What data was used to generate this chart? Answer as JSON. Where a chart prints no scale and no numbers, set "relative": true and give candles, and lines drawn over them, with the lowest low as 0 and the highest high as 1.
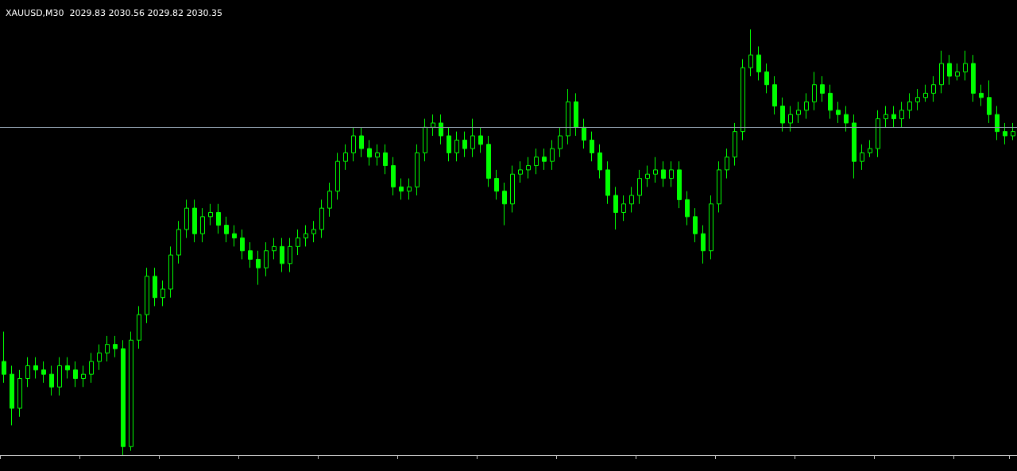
{
  "chart_data": {
    "type": "candlestick",
    "title": "XAUUSD,M30  2029.83 2030.56 2029.82 2030.35",
    "relative": true,
    "grid": false,
    "categories": [
      null,
      null,
      null,
      null,
      null,
      null,
      null,
      null,
      null,
      null,
      null,
      null,
      null,
      null,
      null,
      null,
      null,
      null,
      null,
      null,
      null,
      null,
      null,
      null,
      null,
      null,
      null,
      null,
      null,
      null,
      null,
      null,
      null,
      null,
      null,
      null,
      null,
      null,
      null,
      null,
      null,
      null,
      null,
      null,
      null,
      null,
      null,
      null,
      null,
      null,
      null,
      null,
      null,
      null,
      null,
      null,
      null,
      null,
      null,
      null,
      null,
      null,
      null,
      null,
      null,
      null,
      null,
      null,
      null,
      null,
      null,
      null,
      null,
      null,
      null,
      null,
      null,
      null,
      null,
      null,
      null,
      null,
      null,
      null,
      null,
      null,
      null,
      null,
      null,
      null,
      null,
      null,
      null,
      null,
      null,
      null,
      null,
      null,
      null,
      null,
      null,
      null,
      null,
      null,
      null,
      null,
      null,
      null,
      null,
      null,
      null,
      null,
      null,
      null,
      null,
      null,
      null,
      null,
      null,
      null,
      null,
      null,
      null,
      null,
      null,
      null,
      null,
      null
    ],
    "ref_lines": [
      {
        "axis": "y",
        "value": 0.77,
        "color": "#8a98a6"
      }
    ],
    "series": [
      {
        "color": "#00ff00",
        "ohlc": [
          [
            0.22,
            0.29,
            0.17,
            0.19
          ],
          [
            0.19,
            0.21,
            0.07,
            0.11
          ],
          [
            0.11,
            0.2,
            0.09,
            0.18
          ],
          [
            0.18,
            0.23,
            0.16,
            0.21
          ],
          [
            0.21,
            0.23,
            0.18,
            0.2
          ],
          [
            0.2,
            0.22,
            0.17,
            0.19
          ],
          [
            0.19,
            0.21,
            0.14,
            0.16
          ],
          [
            0.16,
            0.23,
            0.14,
            0.21
          ],
          [
            0.21,
            0.23,
            0.18,
            0.2
          ],
          [
            0.2,
            0.22,
            0.16,
            0.18
          ],
          [
            0.18,
            0.21,
            0.16,
            0.19
          ],
          [
            0.19,
            0.24,
            0.17,
            0.22
          ],
          [
            0.22,
            0.26,
            0.2,
            0.24
          ],
          [
            0.24,
            0.28,
            0.22,
            0.26
          ],
          [
            0.26,
            0.28,
            0.23,
            0.25
          ],
          [
            0.25,
            0.27,
            0.0,
            0.02
          ],
          [
            0.02,
            0.29,
            0.01,
            0.27
          ],
          [
            0.27,
            0.35,
            0.25,
            0.33
          ],
          [
            0.33,
            0.44,
            0.31,
            0.42
          ],
          [
            0.42,
            0.44,
            0.35,
            0.37
          ],
          [
            0.37,
            0.41,
            0.35,
            0.39
          ],
          [
            0.39,
            0.49,
            0.37,
            0.47
          ],
          [
            0.47,
            0.55,
            0.45,
            0.53
          ],
          [
            0.53,
            0.6,
            0.51,
            0.58
          ],
          [
            0.58,
            0.6,
            0.5,
            0.52
          ],
          [
            0.52,
            0.58,
            0.5,
            0.56
          ],
          [
            0.56,
            0.59,
            0.54,
            0.57
          ],
          [
            0.57,
            0.59,
            0.52,
            0.54
          ],
          [
            0.54,
            0.56,
            0.5,
            0.52
          ],
          [
            0.52,
            0.54,
            0.49,
            0.51
          ],
          [
            0.51,
            0.53,
            0.46,
            0.48
          ],
          [
            0.48,
            0.5,
            0.44,
            0.46
          ],
          [
            0.46,
            0.48,
            0.4,
            0.44
          ],
          [
            0.44,
            0.5,
            0.42,
            0.48
          ],
          [
            0.48,
            0.51,
            0.46,
            0.49
          ],
          [
            0.49,
            0.51,
            0.43,
            0.45
          ],
          [
            0.45,
            0.51,
            0.43,
            0.49
          ],
          [
            0.49,
            0.53,
            0.47,
            0.51
          ],
          [
            0.51,
            0.54,
            0.49,
            0.52
          ],
          [
            0.52,
            0.55,
            0.5,
            0.53
          ],
          [
            0.53,
            0.6,
            0.51,
            0.58
          ],
          [
            0.58,
            0.64,
            0.56,
            0.62
          ],
          [
            0.62,
            0.71,
            0.6,
            0.69
          ],
          [
            0.69,
            0.73,
            0.67,
            0.71
          ],
          [
            0.71,
            0.77,
            0.69,
            0.75
          ],
          [
            0.75,
            0.77,
            0.7,
            0.72
          ],
          [
            0.72,
            0.74,
            0.68,
            0.7
          ],
          [
            0.7,
            0.73,
            0.68,
            0.71
          ],
          [
            0.71,
            0.73,
            0.66,
            0.68
          ],
          [
            0.68,
            0.7,
            0.61,
            0.63
          ],
          [
            0.63,
            0.65,
            0.6,
            0.62
          ],
          [
            0.62,
            0.65,
            0.6,
            0.63
          ],
          [
            0.63,
            0.73,
            0.61,
            0.71
          ],
          [
            0.71,
            0.79,
            0.69,
            0.77
          ],
          [
            0.77,
            0.8,
            0.75,
            0.78
          ],
          [
            0.78,
            0.8,
            0.73,
            0.75
          ],
          [
            0.75,
            0.77,
            0.69,
            0.71
          ],
          [
            0.71,
            0.76,
            0.69,
            0.74
          ],
          [
            0.74,
            0.76,
            0.7,
            0.72
          ],
          [
            0.72,
            0.79,
            0.7,
            0.75
          ],
          [
            0.75,
            0.77,
            0.71,
            0.73
          ],
          [
            0.73,
            0.75,
            0.63,
            0.65
          ],
          [
            0.65,
            0.67,
            0.6,
            0.62
          ],
          [
            0.62,
            0.64,
            0.54,
            0.59
          ],
          [
            0.59,
            0.68,
            0.57,
            0.66
          ],
          [
            0.66,
            0.69,
            0.64,
            0.67
          ],
          [
            0.67,
            0.7,
            0.65,
            0.68
          ],
          [
            0.68,
            0.72,
            0.66,
            0.7
          ],
          [
            0.7,
            0.72,
            0.67,
            0.69
          ],
          [
            0.69,
            0.74,
            0.67,
            0.72
          ],
          [
            0.72,
            0.77,
            0.7,
            0.75
          ],
          [
            0.75,
            0.86,
            0.73,
            0.83
          ],
          [
            0.83,
            0.85,
            0.75,
            0.77
          ],
          [
            0.77,
            0.79,
            0.72,
            0.74
          ],
          [
            0.74,
            0.76,
            0.69,
            0.71
          ],
          [
            0.71,
            0.73,
            0.65,
            0.67
          ],
          [
            0.67,
            0.69,
            0.59,
            0.61
          ],
          [
            0.61,
            0.63,
            0.53,
            0.57
          ],
          [
            0.57,
            0.61,
            0.55,
            0.59
          ],
          [
            0.59,
            0.63,
            0.57,
            0.61
          ],
          [
            0.61,
            0.67,
            0.59,
            0.65
          ],
          [
            0.65,
            0.68,
            0.63,
            0.66
          ],
          [
            0.66,
            0.7,
            0.64,
            0.67
          ],
          [
            0.67,
            0.69,
            0.63,
            0.65
          ],
          [
            0.65,
            0.69,
            0.63,
            0.67
          ],
          [
            0.67,
            0.69,
            0.58,
            0.6
          ],
          [
            0.6,
            0.62,
            0.54,
            0.56
          ],
          [
            0.56,
            0.58,
            0.5,
            0.52
          ],
          [
            0.52,
            0.54,
            0.45,
            0.48
          ],
          [
            0.48,
            0.61,
            0.46,
            0.59
          ],
          [
            0.59,
            0.69,
            0.57,
            0.67
          ],
          [
            0.67,
            0.72,
            0.65,
            0.7
          ],
          [
            0.7,
            0.78,
            0.68,
            0.76
          ],
          [
            0.76,
            0.93,
            0.74,
            0.91
          ],
          [
            0.91,
            1.0,
            0.89,
            0.94
          ],
          [
            0.94,
            0.96,
            0.88,
            0.9
          ],
          [
            0.9,
            0.92,
            0.85,
            0.87
          ],
          [
            0.87,
            0.89,
            0.8,
            0.82
          ],
          [
            0.82,
            0.84,
            0.76,
            0.78
          ],
          [
            0.78,
            0.82,
            0.76,
            0.8
          ],
          [
            0.8,
            0.83,
            0.78,
            0.81
          ],
          [
            0.81,
            0.85,
            0.79,
            0.83
          ],
          [
            0.83,
            0.9,
            0.81,
            0.87
          ],
          [
            0.87,
            0.89,
            0.83,
            0.85
          ],
          [
            0.85,
            0.87,
            0.79,
            0.81
          ],
          [
            0.81,
            0.83,
            0.78,
            0.8
          ],
          [
            0.8,
            0.82,
            0.76,
            0.78
          ],
          [
            0.78,
            0.8,
            0.65,
            0.69
          ],
          [
            0.69,
            0.73,
            0.67,
            0.71
          ],
          [
            0.71,
            0.74,
            0.7,
            0.72
          ],
          [
            0.72,
            0.81,
            0.7,
            0.79
          ],
          [
            0.79,
            0.82,
            0.77,
            0.8
          ],
          [
            0.8,
            0.82,
            0.77,
            0.79
          ],
          [
            0.79,
            0.83,
            0.77,
            0.81
          ],
          [
            0.81,
            0.85,
            0.79,
            0.83
          ],
          [
            0.83,
            0.86,
            0.81,
            0.84
          ],
          [
            0.84,
            0.87,
            0.83,
            0.85
          ],
          [
            0.85,
            0.89,
            0.83,
            0.87
          ],
          [
            0.87,
            0.95,
            0.85,
            0.92
          ],
          [
            0.92,
            0.94,
            0.87,
            0.89
          ],
          [
            0.89,
            0.92,
            0.88,
            0.9
          ],
          [
            0.9,
            0.95,
            0.88,
            0.92
          ],
          [
            0.92,
            0.94,
            0.83,
            0.85
          ],
          [
            0.85,
            0.87,
            0.82,
            0.84
          ],
          [
            0.84,
            0.88,
            0.78,
            0.8
          ],
          [
            0.8,
            0.82,
            0.74,
            0.76
          ],
          [
            0.76,
            0.78,
            0.73,
            0.75
          ],
          [
            0.75,
            0.78,
            0.74,
            0.76
          ]
        ]
      }
    ]
  }
}
